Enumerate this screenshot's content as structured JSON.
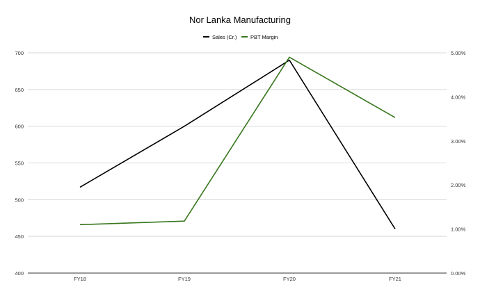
{
  "chart_data": {
    "type": "line",
    "title": "Nor Lanka Manufacturing",
    "categories": [
      "FY18",
      "FY19",
      "FY20",
      "FY21"
    ],
    "series": [
      {
        "name": "Sales (Cr.)",
        "axis": "left",
        "color": "#000000",
        "values": [
          517,
          600,
          690,
          460
        ]
      },
      {
        "name": "PBT Margin",
        "axis": "right",
        "color": "#38761d",
        "values": [
          0.011,
          0.0118,
          0.049,
          0.0353
        ]
      }
    ],
    "y_left": {
      "min": 400,
      "max": 700,
      "ticks": [
        "700",
        "650",
        "600",
        "550",
        "500",
        "450",
        "400"
      ]
    },
    "y_right": {
      "min": 0,
      "max": 0.05,
      "ticks": [
        "5.00%",
        "4.00%",
        "3.00%",
        "2.00%",
        "1.00%",
        "0.00%"
      ]
    },
    "grid": true,
    "legend_position": "top-center"
  }
}
